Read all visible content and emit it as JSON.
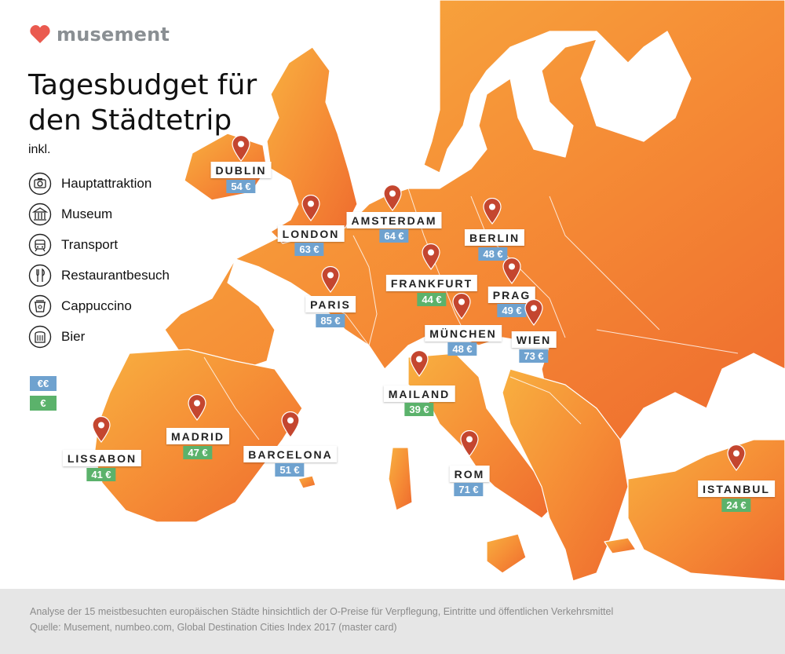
{
  "brand": {
    "name": "musement",
    "heart_color": "#ea5a4f",
    "text_color": "#8a8f93"
  },
  "title": "Tagesbudget für den Städtetrip",
  "inkl_label": "inkl.",
  "legend": [
    {
      "icon": "camera-icon",
      "label": "Hauptattraktion"
    },
    {
      "icon": "museum-icon",
      "label": "Museum"
    },
    {
      "icon": "tram-icon",
      "label": "Transport"
    },
    {
      "icon": "fork-knife-icon",
      "label": "Restaurantbesuch"
    },
    {
      "icon": "coffee-cup-icon",
      "label": "Cappuccino"
    },
    {
      "icon": "beer-icon",
      "label": "Bier"
    }
  ],
  "price_key": [
    {
      "label": "€€",
      "color": "#6fa2cf"
    },
    {
      "label": "€",
      "color": "#5bb26b"
    }
  ],
  "colors": {
    "expensive": "#6fa2cf",
    "cheap": "#5bb26b",
    "pin": "#c4462f",
    "land_start": "#f7a93b",
    "land_end": "#ef6a2f",
    "sea": "#ffffff",
    "footer_bg": "#e6e6e6"
  },
  "cities": [
    {
      "name": "DUBLIN",
      "price": "54 €",
      "tier": "expensive"
    },
    {
      "name": "LONDON",
      "price": "63 €",
      "tier": "expensive"
    },
    {
      "name": "AMSTERDAM",
      "price": "64 €",
      "tier": "expensive"
    },
    {
      "name": "BERLIN",
      "price": "48 €",
      "tier": "expensive"
    },
    {
      "name": "FRANKFURT",
      "price": "44 €",
      "tier": "cheap"
    },
    {
      "name": "PRAG",
      "price": "49 €",
      "tier": "expensive"
    },
    {
      "name": "PARIS",
      "price": "85 €",
      "tier": "expensive"
    },
    {
      "name": "MÜNCHEN",
      "price": "48 €",
      "tier": "expensive"
    },
    {
      "name": "WIEN",
      "price": "73 €",
      "tier": "expensive"
    },
    {
      "name": "MAILAND",
      "price": "39 €",
      "tier": "cheap"
    },
    {
      "name": "MADRID",
      "price": "47 €",
      "tier": "cheap"
    },
    {
      "name": "LISSABON",
      "price": "41 €",
      "tier": "cheap"
    },
    {
      "name": "BARCELONA",
      "price": "51 €",
      "tier": "expensive"
    },
    {
      "name": "ROM",
      "price": "71 €",
      "tier": "expensive"
    },
    {
      "name": "ISTANBUL",
      "price": "24 €",
      "tier": "cheap"
    }
  ],
  "footer": {
    "line1": "Analyse der 15 meistbesuchten europäischen Städte hinsichtlich der O-Preise für Verpflegung, Eintritte und öffentlichen Verkehrsmittel",
    "line2": "Quelle: Musement, numbeo.com, Global Destination Cities Index 2017 (master card)"
  }
}
